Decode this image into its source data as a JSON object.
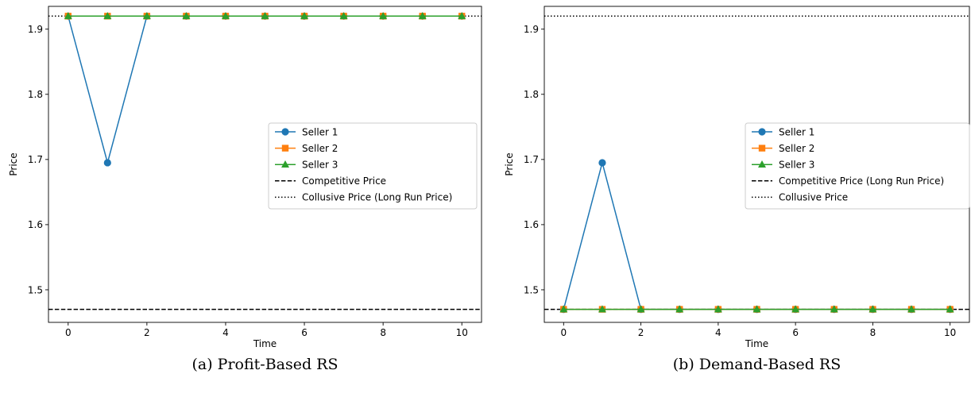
{
  "captions": [
    "(a) Profit-Based RS",
    "(b) Demand-Based RS"
  ],
  "chart_data": [
    {
      "type": "line",
      "caption": "(a) Profit-Based RS",
      "xlabel": "Time",
      "ylabel": "Price",
      "xlim": [
        -0.5,
        10.5
      ],
      "ylim": [
        1.45,
        1.935
      ],
      "xticks": [
        0,
        2,
        4,
        6,
        8,
        10
      ],
      "yticks": [
        1.5,
        1.6,
        1.7,
        1.8,
        1.9
      ],
      "ytick_labels": [
        "1.5",
        "1.6",
        "1.7",
        "1.8",
        "1.9"
      ],
      "x": [
        0,
        1,
        2,
        3,
        4,
        5,
        6,
        7,
        8,
        9,
        10
      ],
      "series": [
        {
          "name": "Seller 1",
          "color": "#1f77b4",
          "marker": "circle",
          "values": [
            1.92,
            1.695,
            1.92,
            1.92,
            1.92,
            1.92,
            1.92,
            1.92,
            1.92,
            1.92,
            1.92
          ]
        },
        {
          "name": "Seller 2",
          "color": "#ff7f0e",
          "marker": "square",
          "values": [
            1.92,
            1.92,
            1.92,
            1.92,
            1.92,
            1.92,
            1.92,
            1.92,
            1.92,
            1.92,
            1.92
          ]
        },
        {
          "name": "Seller 3",
          "color": "#2ca02c",
          "marker": "triangle",
          "values": [
            1.92,
            1.92,
            1.92,
            1.92,
            1.92,
            1.92,
            1.92,
            1.92,
            1.92,
            1.92,
            1.92
          ]
        }
      ],
      "hlines": [
        {
          "name": "Competitive Price",
          "value": 1.47,
          "style": "dashed",
          "color": "#000000"
        },
        {
          "name": "Collusive Price (Long Run Price)",
          "value": 1.92,
          "style": "dotted",
          "color": "#000000"
        }
      ],
      "legend_position": "center-right",
      "grid": false
    },
    {
      "type": "line",
      "caption": "(b) Demand-Based RS",
      "xlabel": "Time",
      "ylabel": "Price",
      "xlim": [
        -0.5,
        10.5
      ],
      "ylim": [
        1.45,
        1.935
      ],
      "xticks": [
        0,
        2,
        4,
        6,
        8,
        10
      ],
      "yticks": [
        1.5,
        1.6,
        1.7,
        1.8,
        1.9
      ],
      "ytick_labels": [
        "1.5",
        "1.6",
        "1.7",
        "1.8",
        "1.9"
      ],
      "x": [
        0,
        1,
        2,
        3,
        4,
        5,
        6,
        7,
        8,
        9,
        10
      ],
      "series": [
        {
          "name": "Seller 1",
          "color": "#1f77b4",
          "marker": "circle",
          "values": [
            1.47,
            1.695,
            1.47,
            1.47,
            1.47,
            1.47,
            1.47,
            1.47,
            1.47,
            1.47,
            1.47
          ]
        },
        {
          "name": "Seller 2",
          "color": "#ff7f0e",
          "marker": "square",
          "values": [
            1.47,
            1.47,
            1.47,
            1.47,
            1.47,
            1.47,
            1.47,
            1.47,
            1.47,
            1.47,
            1.47
          ]
        },
        {
          "name": "Seller 3",
          "color": "#2ca02c",
          "marker": "triangle",
          "values": [
            1.47,
            1.47,
            1.47,
            1.47,
            1.47,
            1.47,
            1.47,
            1.47,
            1.47,
            1.47,
            1.47
          ]
        }
      ],
      "hlines": [
        {
          "name": "Competitive Price (Long Run Price)",
          "value": 1.47,
          "style": "dashed",
          "color": "#000000"
        },
        {
          "name": "Collusive Price",
          "value": 1.92,
          "style": "dotted",
          "color": "#000000"
        }
      ],
      "legend_position": "center-right",
      "grid": false
    }
  ]
}
